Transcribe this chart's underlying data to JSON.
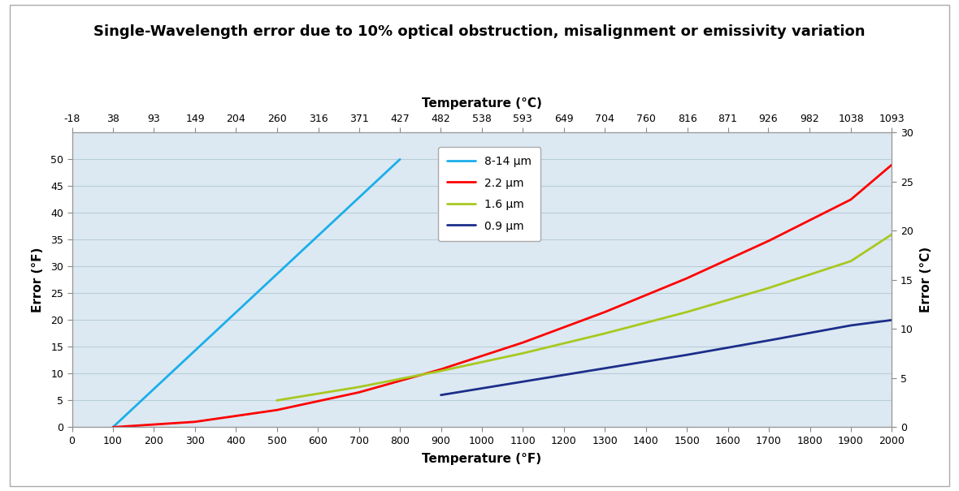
{
  "title": "Single-Wavelength error due to 10% optical obstruction, misalignment or emissivity variation",
  "xlabel_bottom": "Temperature (°F)",
  "xlabel_top": "Temperature (°C)",
  "ylabel_left": "Error (°F)",
  "ylabel_right": "Error (°C)",
  "xlim_F": [
    0,
    2000
  ],
  "ylim_F": [
    0,
    55
  ],
  "ylim_C": [
    0,
    30.556
  ],
  "xticks_F": [
    0,
    100,
    200,
    300,
    400,
    500,
    600,
    700,
    800,
    900,
    1000,
    1100,
    1200,
    1300,
    1400,
    1500,
    1600,
    1700,
    1800,
    1900,
    2000
  ],
  "xticks_C": [
    -18,
    38,
    93,
    149,
    204,
    260,
    316,
    371,
    427,
    482,
    538,
    593,
    649,
    704,
    760,
    816,
    871,
    926,
    982,
    1038,
    1093
  ],
  "yticks_F": [
    0,
    5,
    10,
    15,
    20,
    25,
    30,
    35,
    40,
    45,
    50
  ],
  "yticks_C": [
    0,
    5,
    10,
    15,
    20,
    25,
    30
  ],
  "line_8_14": {
    "label": "8-14 μm",
    "color": "#1BAEEA",
    "x": [
      100,
      800
    ],
    "y": [
      0,
      50
    ],
    "linewidth": 2.0
  },
  "line_2_2": {
    "label": "2.2 μm",
    "color": "#FF0000",
    "x": [
      100,
      300,
      500,
      700,
      900,
      1100,
      1300,
      1500,
      1700,
      1900,
      2000
    ],
    "y": [
      0,
      1.0,
      3.2,
      6.5,
      10.8,
      15.8,
      21.5,
      27.8,
      34.8,
      42.5,
      49.0
    ],
    "linewidth": 2.0
  },
  "line_1_6": {
    "label": "1.6 μm",
    "color": "#A8C820",
    "x": [
      500,
      700,
      900,
      1100,
      1300,
      1500,
      1700,
      1900,
      2000
    ],
    "y": [
      5.0,
      7.5,
      10.5,
      13.8,
      17.5,
      21.5,
      26.0,
      31.0,
      36.0
    ],
    "linewidth": 2.0
  },
  "line_0_9": {
    "label": "0.9 μm",
    "color": "#1C2E8A",
    "x": [
      900,
      1100,
      1300,
      1500,
      1700,
      1900,
      2000
    ],
    "y": [
      6.0,
      8.5,
      11.0,
      13.5,
      16.2,
      19.0,
      20.0
    ],
    "linewidth": 2.0
  },
  "background_color": "#DCE9F2",
  "fig_background": "#FFFFFF",
  "grid_color": "#B8CDD8",
  "border_color": "#999999",
  "title_fontsize": 13,
  "axis_label_fontsize": 11,
  "tick_fontsize": 9,
  "legend_fontsize": 10
}
